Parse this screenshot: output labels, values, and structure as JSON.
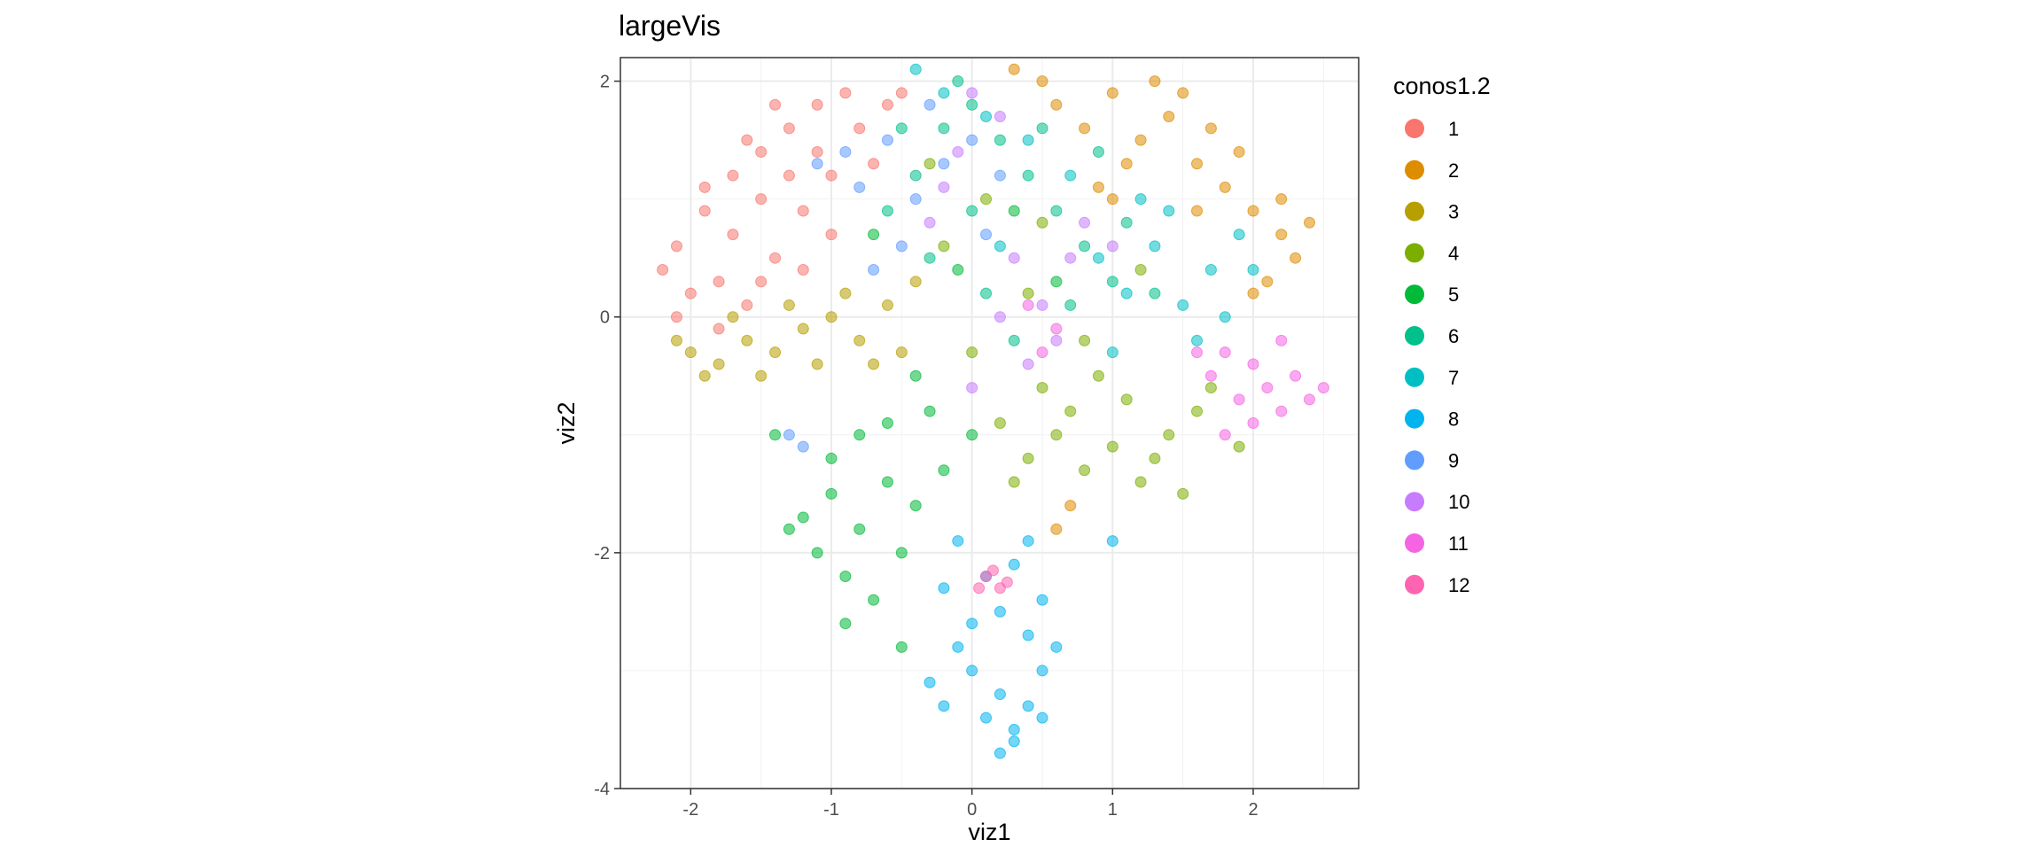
{
  "chart_data": {
    "type": "scatter",
    "title": "largeVis",
    "xlabel": "viz1",
    "ylabel": "viz2",
    "xlim": [
      -2.5,
      2.75
    ],
    "ylim": [
      -4.0,
      2.2
    ],
    "x_ticks": [
      -2,
      -1,
      0,
      1,
      2
    ],
    "y_ticks": [
      2,
      0,
      -2,
      -4
    ],
    "x_tick_labels": [
      "-2",
      "-1",
      "0",
      "1",
      "2"
    ],
    "y_tick_labels": [
      "2",
      "0",
      "-2",
      "-4"
    ],
    "grid": true,
    "legend": {
      "title": "conos1.2",
      "placement": "right"
    },
    "series": [
      {
        "name": "1",
        "color": "#F8766D",
        "points": [
          [
            -2.1,
            0.6
          ],
          [
            -1.9,
            0.9
          ],
          [
            -1.7,
            1.2
          ],
          [
            -1.5,
            1.4
          ],
          [
            -1.3,
            1.6
          ],
          [
            -1.1,
            1.8
          ],
          [
            -0.9,
            1.9
          ],
          [
            -1.8,
            0.3
          ],
          [
            -1.6,
            0.1
          ],
          [
            -1.4,
            0.5
          ],
          [
            -1.2,
            0.9
          ],
          [
            -1.0,
            1.2
          ],
          [
            -2.2,
            0.4
          ],
          [
            -2.0,
            0.2
          ],
          [
            -1.7,
            0.7
          ],
          [
            -1.5,
            1.0
          ],
          [
            -1.3,
            1.2
          ],
          [
            -1.1,
            1.4
          ],
          [
            -0.8,
            1.6
          ],
          [
            -0.6,
            1.8
          ],
          [
            -1.9,
            1.1
          ],
          [
            -1.6,
            1.5
          ],
          [
            -1.4,
            1.8
          ],
          [
            -1.2,
            0.4
          ],
          [
            -1.0,
            0.7
          ],
          [
            -0.7,
            1.3
          ],
          [
            -2.1,
            0.0
          ],
          [
            -1.8,
            -0.1
          ],
          [
            -1.5,
            0.3
          ],
          [
            -0.5,
            1.9
          ]
        ]
      },
      {
        "name": "2",
        "color": "#DE8C00",
        "points": [
          [
            0.6,
            1.8
          ],
          [
            0.8,
            1.6
          ],
          [
            1.0,
            1.9
          ],
          [
            1.2,
            1.5
          ],
          [
            1.4,
            1.7
          ],
          [
            1.6,
            1.3
          ],
          [
            1.8,
            1.1
          ],
          [
            2.0,
            0.9
          ],
          [
            2.2,
            0.7
          ],
          [
            2.3,
            0.5
          ],
          [
            2.1,
            0.3
          ],
          [
            1.9,
            1.4
          ],
          [
            1.7,
            1.6
          ],
          [
            1.5,
            1.9
          ],
          [
            1.3,
            2.0
          ],
          [
            1.1,
            1.3
          ],
          [
            0.9,
            1.1
          ],
          [
            2.4,
            0.8
          ],
          [
            2.2,
            1.0
          ],
          [
            2.0,
            0.2
          ],
          [
            0.5,
            2.0
          ],
          [
            0.3,
            2.1
          ],
          [
            1.0,
            1.0
          ],
          [
            1.6,
            0.9
          ],
          [
            0.7,
            -1.6
          ],
          [
            0.6,
            -1.8
          ]
        ]
      },
      {
        "name": "3",
        "color": "#B79F00",
        "points": [
          [
            -2.0,
            -0.3
          ],
          [
            -1.8,
            -0.4
          ],
          [
            -1.6,
            -0.2
          ],
          [
            -1.4,
            -0.3
          ],
          [
            -1.2,
            -0.1
          ],
          [
            -1.0,
            0.0
          ],
          [
            -0.8,
            -0.2
          ],
          [
            -0.6,
            0.1
          ],
          [
            -1.9,
            -0.5
          ],
          [
            -1.5,
            -0.5
          ],
          [
            -1.1,
            -0.4
          ],
          [
            -0.9,
            0.2
          ],
          [
            -0.7,
            -0.4
          ],
          [
            -1.7,
            0.0
          ],
          [
            -1.3,
            0.1
          ],
          [
            -0.5,
            -0.3
          ],
          [
            -2.1,
            -0.2
          ],
          [
            -0.4,
            0.3
          ]
        ]
      },
      {
        "name": "4",
        "color": "#7CAE00",
        "points": [
          [
            0.4,
            -1.2
          ],
          [
            0.6,
            -1.0
          ],
          [
            0.8,
            -1.3
          ],
          [
            1.0,
            -1.1
          ],
          [
            1.2,
            -1.4
          ],
          [
            1.4,
            -1.0
          ],
          [
            1.6,
            -0.8
          ],
          [
            0.5,
            -0.6
          ],
          [
            0.7,
            -0.8
          ],
          [
            0.9,
            -0.5
          ],
          [
            1.1,
            -0.7
          ],
          [
            1.3,
            -1.2
          ],
          [
            1.5,
            -1.5
          ],
          [
            0.3,
            -1.4
          ],
          [
            0.2,
            -0.9
          ],
          [
            1.7,
            -0.6
          ],
          [
            0.0,
            -0.3
          ],
          [
            -0.2,
            0.6
          ],
          [
            0.1,
            1.0
          ],
          [
            0.5,
            0.8
          ],
          [
            -0.3,
            1.3
          ],
          [
            0.4,
            0.2
          ],
          [
            1.2,
            0.4
          ],
          [
            0.8,
            -0.2
          ],
          [
            1.9,
            -1.1
          ]
        ]
      },
      {
        "name": "5",
        "color": "#00BA38",
        "points": [
          [
            -1.2,
            -1.7
          ],
          [
            -1.0,
            -1.5
          ],
          [
            -0.8,
            -1.8
          ],
          [
            -0.6,
            -1.4
          ],
          [
            -0.4,
            -1.6
          ],
          [
            -1.1,
            -2.0
          ],
          [
            -0.9,
            -2.2
          ],
          [
            -0.7,
            -2.4
          ],
          [
            -0.5,
            -2.0
          ],
          [
            -1.0,
            -1.2
          ],
          [
            -0.8,
            -1.0
          ],
          [
            -0.6,
            -0.9
          ],
          [
            -0.3,
            -0.8
          ],
          [
            -0.9,
            -2.6
          ],
          [
            -0.5,
            -2.8
          ],
          [
            -1.3,
            -1.8
          ],
          [
            -0.2,
            -1.3
          ],
          [
            0.0,
            -1.0
          ],
          [
            -0.4,
            -0.5
          ],
          [
            -0.1,
            0.4
          ],
          [
            0.3,
            0.9
          ],
          [
            -0.7,
            0.7
          ],
          [
            0.6,
            0.3
          ],
          [
            -1.4,
            -1.0
          ]
        ]
      },
      {
        "name": "6",
        "color": "#00C08B",
        "points": [
          [
            -0.4,
            1.2
          ],
          [
            -0.2,
            1.6
          ],
          [
            0.0,
            1.8
          ],
          [
            0.2,
            1.5
          ],
          [
            0.4,
            1.2
          ],
          [
            0.6,
            0.9
          ],
          [
            0.8,
            0.6
          ],
          [
            1.0,
            0.3
          ],
          [
            -0.6,
            0.9
          ],
          [
            -0.3,
            0.5
          ],
          [
            0.1,
            0.2
          ],
          [
            0.3,
            -0.2
          ],
          [
            0.7,
            0.1
          ],
          [
            1.1,
            0.8
          ],
          [
            1.3,
            0.2
          ],
          [
            -0.5,
            1.6
          ],
          [
            0.0,
            0.9
          ],
          [
            0.5,
            1.6
          ],
          [
            -0.1,
            2.0
          ],
          [
            0.9,
            1.4
          ]
        ]
      },
      {
        "name": "7",
        "color": "#00BFC4",
        "points": [
          [
            0.9,
            0.5
          ],
          [
            1.1,
            0.2
          ],
          [
            1.3,
            0.6
          ],
          [
            1.5,
            0.1
          ],
          [
            1.7,
            0.4
          ],
          [
            1.9,
            0.7
          ],
          [
            1.2,
            1.0
          ],
          [
            1.4,
            0.9
          ],
          [
            1.6,
            -0.2
          ],
          [
            0.7,
            1.2
          ],
          [
            0.4,
            1.5
          ],
          [
            0.1,
            1.7
          ],
          [
            -0.2,
            1.9
          ],
          [
            1.8,
            0.0
          ],
          [
            2.0,
            0.4
          ],
          [
            -0.4,
            2.1
          ],
          [
            0.2,
            0.6
          ],
          [
            1.0,
            -0.3
          ]
        ]
      },
      {
        "name": "8",
        "color": "#00B4F0",
        "points": [
          [
            0.0,
            -3.0
          ],
          [
            0.2,
            -3.2
          ],
          [
            0.1,
            -3.4
          ],
          [
            0.3,
            -3.5
          ],
          [
            0.2,
            -3.7
          ],
          [
            0.4,
            -3.3
          ],
          [
            0.5,
            -3.0
          ],
          [
            0.4,
            -2.7
          ],
          [
            0.2,
            -2.5
          ],
          [
            0.0,
            -2.6
          ],
          [
            -0.1,
            -2.8
          ],
          [
            -0.3,
            -3.1
          ],
          [
            -0.2,
            -3.3
          ],
          [
            0.1,
            -2.2
          ],
          [
            0.3,
            -2.1
          ],
          [
            0.5,
            -2.4
          ],
          [
            -0.2,
            -2.3
          ],
          [
            0.6,
            -2.8
          ],
          [
            0.4,
            -1.9
          ],
          [
            -0.1,
            -1.9
          ],
          [
            0.3,
            -3.6
          ],
          [
            1.0,
            -1.9
          ],
          [
            0.5,
            -3.4
          ]
        ]
      },
      {
        "name": "9",
        "color": "#619CFF",
        "points": [
          [
            -0.6,
            1.5
          ],
          [
            -0.4,
            1.0
          ],
          [
            -0.2,
            1.3
          ],
          [
            0.0,
            1.5
          ],
          [
            0.2,
            1.2
          ],
          [
            -0.8,
            1.1
          ],
          [
            -0.5,
            0.6
          ],
          [
            -0.9,
            1.4
          ],
          [
            0.1,
            0.7
          ],
          [
            -1.1,
            1.3
          ],
          [
            -1.3,
            -1.0
          ],
          [
            -1.2,
            -1.1
          ],
          [
            -0.3,
            1.8
          ],
          [
            -0.7,
            0.4
          ]
        ]
      },
      {
        "name": "10",
        "color": "#C77CFF",
        "points": [
          [
            0.0,
            1.9
          ],
          [
            0.2,
            1.7
          ],
          [
            -0.1,
            1.4
          ],
          [
            0.3,
            0.5
          ],
          [
            0.5,
            0.1
          ],
          [
            0.4,
            -0.4
          ],
          [
            0.6,
            -0.2
          ],
          [
            0.2,
            0.0
          ],
          [
            -0.3,
            0.8
          ],
          [
            0.7,
            0.5
          ],
          [
            0.0,
            -0.6
          ],
          [
            0.8,
            0.8
          ],
          [
            -0.2,
            1.1
          ],
          [
            1.0,
            0.6
          ]
        ]
      },
      {
        "name": "11",
        "color": "#F564E3",
        "points": [
          [
            1.8,
            -0.3
          ],
          [
            2.0,
            -0.4
          ],
          [
            2.1,
            -0.6
          ],
          [
            2.2,
            -0.2
          ],
          [
            1.9,
            -0.7
          ],
          [
            2.3,
            -0.5
          ],
          [
            2.4,
            -0.7
          ],
          [
            2.0,
            -0.9
          ],
          [
            1.8,
            -1.0
          ],
          [
            1.7,
            -0.5
          ],
          [
            2.2,
            -0.8
          ],
          [
            1.6,
            -0.3
          ],
          [
            0.6,
            -0.1
          ],
          [
            0.4,
            0.1
          ],
          [
            0.5,
            -0.3
          ],
          [
            2.5,
            -0.6
          ]
        ]
      },
      {
        "name": "12",
        "color": "#FF64B0",
        "points": [
          [
            0.1,
            -2.2
          ],
          [
            0.2,
            -2.3
          ],
          [
            0.15,
            -2.15
          ],
          [
            0.25,
            -2.25
          ],
          [
            0.05,
            -2.3
          ]
        ]
      }
    ]
  }
}
